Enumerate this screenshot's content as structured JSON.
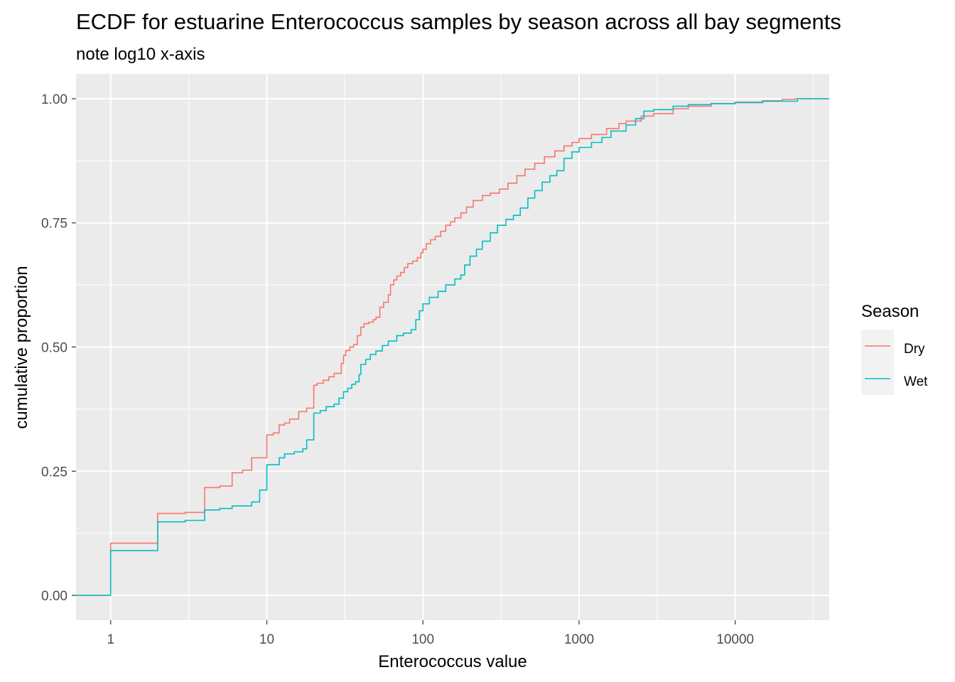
{
  "chart_data": {
    "type": "line",
    "step": true,
    "title": "ECDF for estuarine Enterococcus samples by season across all bay segments",
    "subtitle": "note log10 x-axis",
    "xlabel": "Enterococcus value",
    "ylabel": "cumulative proportion",
    "x_scale": "log10",
    "xlim": [
      0.6,
      40000
    ],
    "ylim": [
      -0.05,
      1.05
    ],
    "x_ticks": [
      1,
      10,
      100,
      1000,
      10000
    ],
    "x_tick_labels": [
      "1",
      "10",
      "100",
      "1000",
      "10000"
    ],
    "y_ticks": [
      0,
      0.25,
      0.5,
      0.75,
      1.0
    ],
    "y_tick_labels": [
      "0.00",
      "0.25",
      "0.50",
      "0.75",
      "1.00"
    ],
    "grid": true,
    "legend": {
      "title": "Season",
      "position": "right"
    },
    "series": [
      {
        "name": "Dry",
        "color": "#F8766D",
        "points": [
          [
            0.6,
            0
          ],
          [
            1,
            0.105
          ],
          [
            2,
            0.165
          ],
          [
            3,
            0.167
          ],
          [
            4,
            0.217
          ],
          [
            5,
            0.22
          ],
          [
            6,
            0.247
          ],
          [
            7,
            0.252
          ],
          [
            8,
            0.277
          ],
          [
            10,
            0.323
          ],
          [
            11,
            0.327
          ],
          [
            12,
            0.343
          ],
          [
            13,
            0.347
          ],
          [
            14,
            0.355
          ],
          [
            16,
            0.37
          ],
          [
            18,
            0.377
          ],
          [
            20,
            0.423
          ],
          [
            21,
            0.427
          ],
          [
            23,
            0.433
          ],
          [
            25,
            0.44
          ],
          [
            27,
            0.447
          ],
          [
            30,
            0.467
          ],
          [
            31,
            0.483
          ],
          [
            32,
            0.493
          ],
          [
            34,
            0.5
          ],
          [
            36,
            0.505
          ],
          [
            38,
            0.523
          ],
          [
            40,
            0.54
          ],
          [
            42,
            0.547
          ],
          [
            45,
            0.55
          ],
          [
            48,
            0.555
          ],
          [
            50,
            0.56
          ],
          [
            53,
            0.58
          ],
          [
            56,
            0.59
          ],
          [
            60,
            0.605
          ],
          [
            62,
            0.625
          ],
          [
            65,
            0.635
          ],
          [
            68,
            0.643
          ],
          [
            72,
            0.65
          ],
          [
            76,
            0.66
          ],
          [
            80,
            0.668
          ],
          [
            86,
            0.673
          ],
          [
            92,
            0.68
          ],
          [
            97,
            0.69
          ],
          [
            100,
            0.697
          ],
          [
            105,
            0.708
          ],
          [
            112,
            0.716
          ],
          [
            120,
            0.723
          ],
          [
            130,
            0.733
          ],
          [
            140,
            0.745
          ],
          [
            150,
            0.752
          ],
          [
            160,
            0.76
          ],
          [
            175,
            0.77
          ],
          [
            190,
            0.782
          ],
          [
            210,
            0.795
          ],
          [
            240,
            0.805
          ],
          [
            270,
            0.81
          ],
          [
            310,
            0.818
          ],
          [
            350,
            0.83
          ],
          [
            400,
            0.845
          ],
          [
            450,
            0.858
          ],
          [
            520,
            0.87
          ],
          [
            600,
            0.883
          ],
          [
            700,
            0.895
          ],
          [
            800,
            0.905
          ],
          [
            900,
            0.912
          ],
          [
            1000,
            0.92
          ],
          [
            1200,
            0.928
          ],
          [
            1500,
            0.94
          ],
          [
            1800,
            0.95
          ],
          [
            2000,
            0.955
          ],
          [
            2500,
            0.965
          ],
          [
            3000,
            0.97
          ],
          [
            4000,
            0.98
          ],
          [
            5000,
            0.985
          ],
          [
            7000,
            0.99
          ],
          [
            10000,
            0.993
          ],
          [
            15000,
            0.996
          ],
          [
            20000,
            0.999
          ],
          [
            24000,
            1.0
          ]
        ]
      },
      {
        "name": "Wet",
        "color": "#00BFC4",
        "points": [
          [
            0.6,
            0
          ],
          [
            1,
            0.09
          ],
          [
            2,
            0.148
          ],
          [
            3,
            0.151
          ],
          [
            4,
            0.172
          ],
          [
            5,
            0.175
          ],
          [
            6,
            0.18
          ],
          [
            8,
            0.188
          ],
          [
            9,
            0.212
          ],
          [
            10,
            0.263
          ],
          [
            12,
            0.277
          ],
          [
            13,
            0.285
          ],
          [
            15,
            0.289
          ],
          [
            17,
            0.295
          ],
          [
            18,
            0.313
          ],
          [
            20,
            0.367
          ],
          [
            22,
            0.372
          ],
          [
            24,
            0.38
          ],
          [
            27,
            0.385
          ],
          [
            29,
            0.397
          ],
          [
            31,
            0.41
          ],
          [
            33,
            0.417
          ],
          [
            35,
            0.425
          ],
          [
            37,
            0.43
          ],
          [
            39,
            0.445
          ],
          [
            40,
            0.465
          ],
          [
            43,
            0.475
          ],
          [
            46,
            0.485
          ],
          [
            50,
            0.492
          ],
          [
            55,
            0.503
          ],
          [
            60,
            0.512
          ],
          [
            68,
            0.523
          ],
          [
            75,
            0.528
          ],
          [
            84,
            0.535
          ],
          [
            90,
            0.555
          ],
          [
            95,
            0.573
          ],
          [
            100,
            0.587
          ],
          [
            110,
            0.6
          ],
          [
            125,
            0.612
          ],
          [
            140,
            0.625
          ],
          [
            160,
            0.637
          ],
          [
            175,
            0.645
          ],
          [
            185,
            0.665
          ],
          [
            200,
            0.683
          ],
          [
            220,
            0.697
          ],
          [
            240,
            0.713
          ],
          [
            270,
            0.73
          ],
          [
            300,
            0.745
          ],
          [
            340,
            0.757
          ],
          [
            380,
            0.765
          ],
          [
            420,
            0.78
          ],
          [
            470,
            0.8
          ],
          [
            520,
            0.815
          ],
          [
            580,
            0.832
          ],
          [
            650,
            0.845
          ],
          [
            720,
            0.855
          ],
          [
            800,
            0.88
          ],
          [
            900,
            0.893
          ],
          [
            1000,
            0.902
          ],
          [
            1200,
            0.912
          ],
          [
            1400,
            0.922
          ],
          [
            1600,
            0.935
          ],
          [
            2000,
            0.947
          ],
          [
            2300,
            0.96
          ],
          [
            2600,
            0.975
          ],
          [
            3000,
            0.978
          ],
          [
            4000,
            0.985
          ],
          [
            5000,
            0.988
          ],
          [
            7000,
            0.99
          ],
          [
            10000,
            0.992
          ],
          [
            15000,
            0.995
          ],
          [
            25000,
            1.0
          ],
          [
            40000,
            1.0
          ]
        ]
      }
    ]
  }
}
